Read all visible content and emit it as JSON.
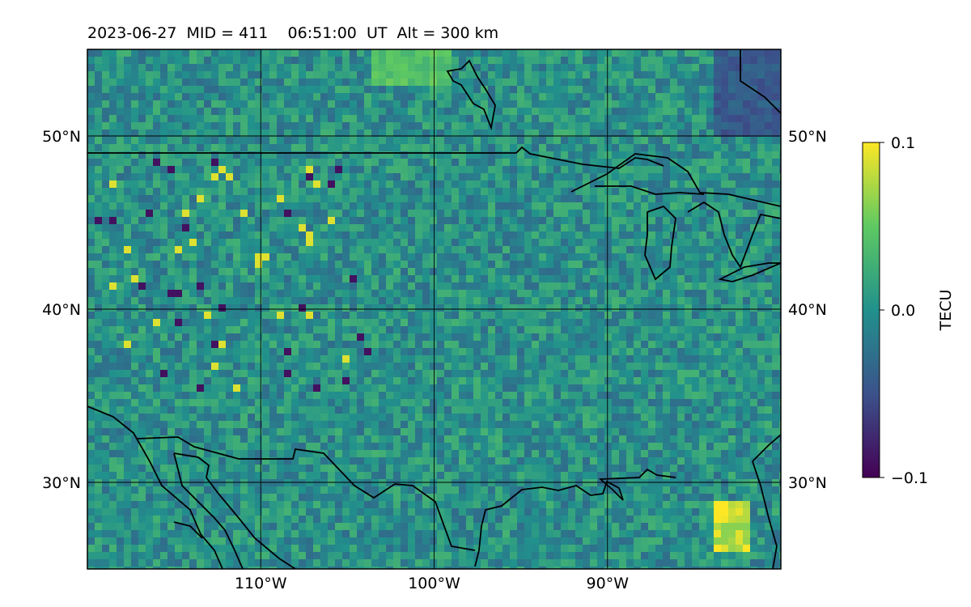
{
  "title": "2023-06-27  MID = 411    06:51:00  UT  Alt = 300 km",
  "map": {
    "lon_range": [
      -120,
      -80
    ],
    "lat_range": [
      25,
      55
    ],
    "lon_ticks": [
      {
        "value": -110,
        "label": "110°W"
      },
      {
        "value": -100,
        "label": "100°W"
      },
      {
        "value": -90,
        "label": "90°W"
      }
    ],
    "lat_ticks": [
      {
        "value": 50,
        "label": "50°N"
      },
      {
        "value": 40,
        "label": "40°N"
      },
      {
        "value": 30,
        "label": "30°N"
      }
    ],
    "background_color": "#2a7f8e",
    "coastline_color": "#000000",
    "grid_color": "#000000"
  },
  "colorbar": {
    "label": "TECU",
    "min": -0.1,
    "max": 0.1,
    "ticks": [
      {
        "value": 0.1,
        "label": "0.1"
      },
      {
        "value": 0.0,
        "label": "0.0"
      },
      {
        "value": -0.1,
        "label": "−0.1"
      }
    ],
    "colormap": "viridis",
    "colormap_stops": [
      "#440154",
      "#3b528b",
      "#21918c",
      "#5ec962",
      "#fde725"
    ]
  },
  "features": [
    {
      "name": "strong-positive-anomaly",
      "description": "yellow patch",
      "lon": [
        -84,
        -82
      ],
      "lat": [
        26,
        29
      ],
      "value": 0.1
    },
    {
      "name": "positive-anomaly-north",
      "description": "light green",
      "lon": [
        -104,
        -99
      ],
      "lat": [
        53,
        55
      ],
      "value": 0.05
    },
    {
      "name": "negative-anomaly-northeast",
      "description": "purple",
      "lon": [
        -84,
        -80
      ],
      "lat": [
        50,
        55
      ],
      "value": -0.05
    }
  ]
}
